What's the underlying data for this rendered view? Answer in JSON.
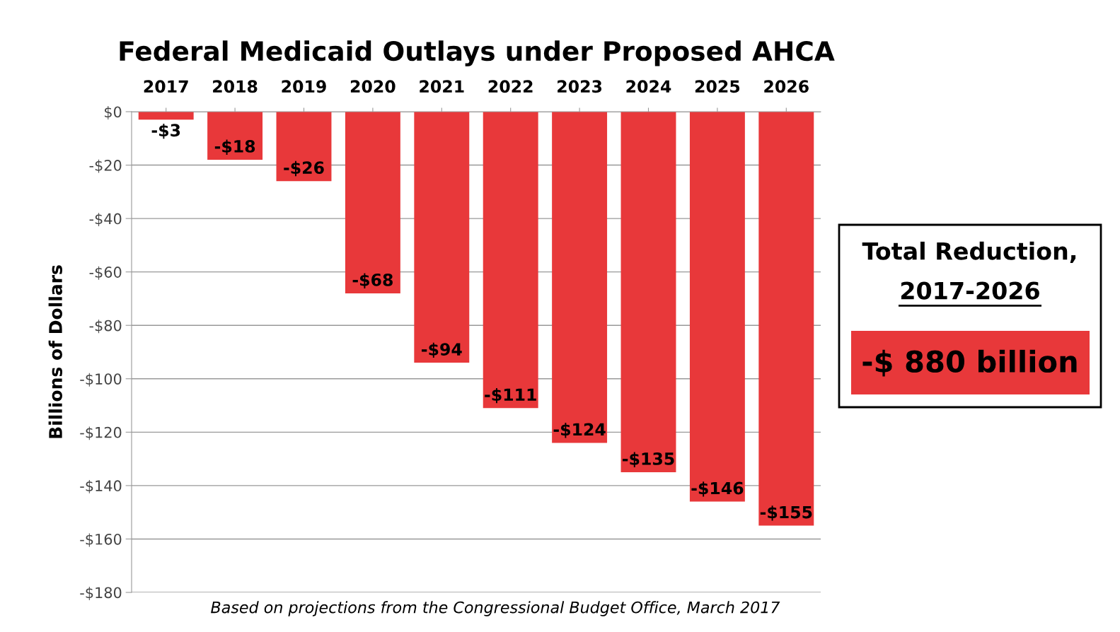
{
  "chart_data": {
    "type": "bar",
    "title": "Federal Medicaid Outlays under Proposed AHCA",
    "ylabel": "Billions of Dollars",
    "categories": [
      "2017",
      "2018",
      "2019",
      "2020",
      "2021",
      "2022",
      "2023",
      "2024",
      "2025",
      "2026"
    ],
    "values": [
      -3,
      -18,
      -26,
      -68,
      -94,
      -111,
      -124,
      -135,
      -146,
      -155
    ],
    "value_labels": [
      "-$3",
      "-$18",
      "-$26",
      "-$68",
      "-$94",
      "-$111",
      "-$124",
      "-$135",
      "-$146",
      "-$155"
    ],
    "color": "#e8383a",
    "ylim": [
      -180,
      0
    ],
    "yticks": [
      {
        "value": 0,
        "label": "$0"
      },
      {
        "value": -20,
        "label": "-$20"
      },
      {
        "value": -40,
        "label": "-$40"
      },
      {
        "value": -60,
        "label": "-$60"
      },
      {
        "value": -80,
        "label": "-$80"
      },
      {
        "value": -100,
        "label": "-$100"
      },
      {
        "value": -120,
        "label": "-$120"
      },
      {
        "value": -140,
        "label": "-$140"
      },
      {
        "value": -160,
        "label": "-$160"
      },
      {
        "value": -180,
        "label": "-$180"
      }
    ],
    "grid": "y",
    "annotations": [
      "Total Reduction,",
      "2017-2026",
      "-$ 880 billion",
      "Based on projections from the Congressional Budget Office, March 2017"
    ]
  }
}
